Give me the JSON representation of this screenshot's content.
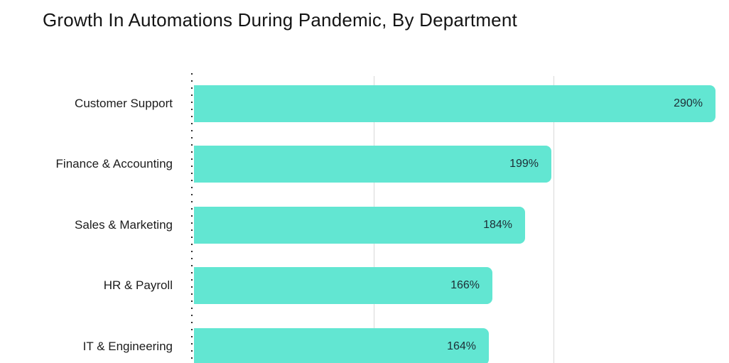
{
  "title": "Growth In Automations During Pandemic, By Department",
  "chart_data": {
    "type": "bar",
    "orientation": "horizontal",
    "title": "Growth In Automations During Pandemic, By Department",
    "categories": [
      "Customer Support",
      "Finance & Accounting",
      "Sales & Marketing",
      "HR & Payroll",
      "IT & Engineering"
    ],
    "values": [
      290,
      199,
      184,
      166,
      164
    ],
    "value_labels": [
      "290%",
      "199%",
      "184%",
      "166%",
      "164%"
    ],
    "xlabel": "",
    "ylabel": "",
    "xlim": [
      0,
      290
    ],
    "gridlines_x": [
      100,
      200
    ],
    "grid": true,
    "legend": false,
    "bar_color": "#62e6d2",
    "gridline_color": "#d9d9d9",
    "axis_style": "dotted",
    "text_color": "#1c1c1c"
  }
}
